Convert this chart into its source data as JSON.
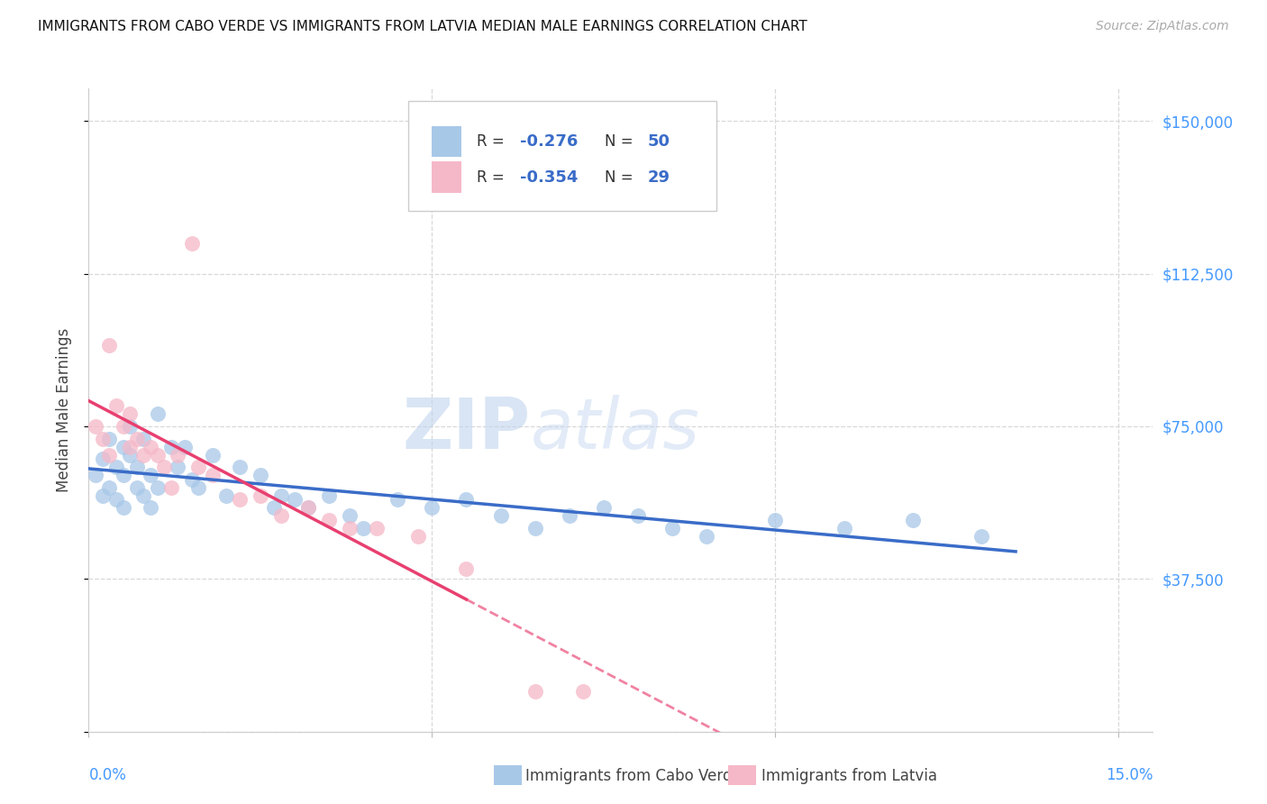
{
  "title": "IMMIGRANTS FROM CABO VERDE VS IMMIGRANTS FROM LATVIA MEDIAN MALE EARNINGS CORRELATION CHART",
  "source": "Source: ZipAtlas.com",
  "ylabel": "Median Male Earnings",
  "y_ticks": [
    0,
    37500,
    75000,
    112500,
    150000
  ],
  "y_tick_labels": [
    "",
    "$37,500",
    "$75,000",
    "$112,500",
    "$150,000"
  ],
  "xlim": [
    0.0,
    0.155
  ],
  "ylim": [
    0,
    158000
  ],
  "cabo_verde_R": "-0.276",
  "cabo_verde_N": "50",
  "latvia_R": "-0.354",
  "latvia_N": "29",
  "cabo_verde_color": "#a8c8e8",
  "latvia_color": "#f5b8c8",
  "cabo_verde_line_color": "#3a6cc8",
  "latvia_line_color": "#e84070",
  "legend_text_color": "#3a6cc8",
  "cabo_verde_x": [
    0.001,
    0.002,
    0.002,
    0.003,
    0.003,
    0.004,
    0.004,
    0.005,
    0.005,
    0.005,
    0.006,
    0.006,
    0.007,
    0.007,
    0.008,
    0.008,
    0.009,
    0.009,
    0.01,
    0.01,
    0.012,
    0.013,
    0.014,
    0.015,
    0.016,
    0.018,
    0.02,
    0.022,
    0.025,
    0.027,
    0.028,
    0.03,
    0.032,
    0.035,
    0.038,
    0.04,
    0.045,
    0.05,
    0.055,
    0.06,
    0.065,
    0.07,
    0.075,
    0.08,
    0.085,
    0.09,
    0.1,
    0.11,
    0.12,
    0.13
  ],
  "cabo_verde_y": [
    63000,
    67000,
    58000,
    72000,
    60000,
    65000,
    57000,
    70000,
    63000,
    55000,
    75000,
    68000,
    60000,
    65000,
    58000,
    72000,
    63000,
    55000,
    78000,
    60000,
    70000,
    65000,
    70000,
    62000,
    60000,
    68000,
    58000,
    65000,
    63000,
    55000,
    58000,
    57000,
    55000,
    58000,
    53000,
    50000,
    57000,
    55000,
    57000,
    53000,
    50000,
    53000,
    55000,
    53000,
    50000,
    48000,
    52000,
    50000,
    52000,
    48000
  ],
  "latvia_x": [
    0.001,
    0.002,
    0.003,
    0.003,
    0.004,
    0.005,
    0.006,
    0.006,
    0.007,
    0.008,
    0.009,
    0.01,
    0.011,
    0.012,
    0.013,
    0.015,
    0.016,
    0.018,
    0.022,
    0.025,
    0.028,
    0.032,
    0.035,
    0.038,
    0.042,
    0.048,
    0.055,
    0.065,
    0.072
  ],
  "latvia_y": [
    75000,
    72000,
    95000,
    68000,
    80000,
    75000,
    78000,
    70000,
    72000,
    68000,
    70000,
    68000,
    65000,
    60000,
    68000,
    120000,
    65000,
    63000,
    57000,
    58000,
    53000,
    55000,
    52000,
    50000,
    50000,
    48000,
    40000,
    10000,
    10000
  ],
  "watermark_zip": "ZIP",
  "watermark_atlas": "atlas",
  "background_color": "#ffffff",
  "grid_color": "#d8d8d8",
  "tick_color": "#4499ff",
  "x_tick_positions": [
    0.0,
    0.05,
    0.1,
    0.15
  ],
  "x_tick_labels_show": [
    "0.0%",
    "",
    "",
    "15.0%"
  ]
}
